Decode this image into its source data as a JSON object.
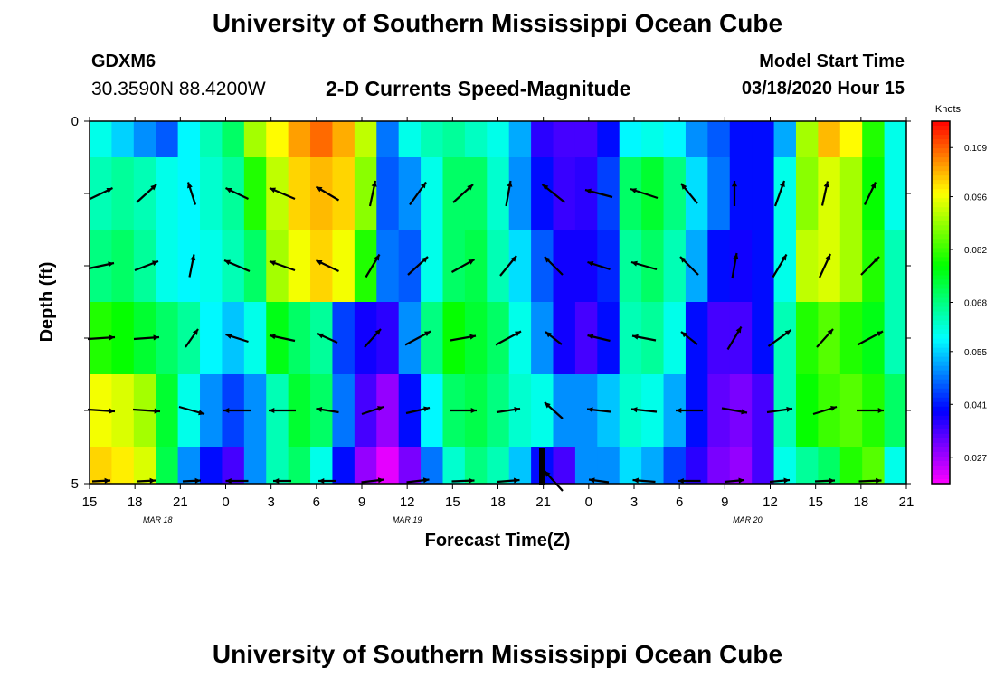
{
  "title": "University of Southern Mississippi Ocean Cube",
  "footer_title": "University of Southern Mississippi Ocean Cube",
  "station": {
    "id": "GDXM6",
    "coords": "30.3590N 88.4200W"
  },
  "subtitle": "2-D Currents Speed-Magnitude",
  "model": {
    "label": "Model Start Time",
    "value": "03/18/2020 Hour 15"
  },
  "chart_data": {
    "type": "heatmap",
    "title": "2-D Currents Speed-Magnitude",
    "xlabel": "Forecast Time(Z)",
    "ylabel": "Depth (ft)",
    "x_ticks": [
      "15",
      "18",
      "21",
      "0",
      "3",
      "6",
      "9",
      "12",
      "15",
      "18",
      "21",
      "0",
      "3",
      "6",
      "9",
      "12",
      "15",
      "18",
      "21"
    ],
    "date_labels": [
      {
        "text": "MAR 18",
        "tick_index": 1.5
      },
      {
        "text": "MAR 19",
        "tick_index": 7
      },
      {
        "text": "MAR 20",
        "tick_index": 14.5
      }
    ],
    "y_ticks": [
      "0",
      "5"
    ],
    "ylim": [
      0,
      5
    ],
    "colorbar": {
      "unit": "Knots",
      "min": 0.02,
      "max": 0.116,
      "ticks": [
        "0.109",
        "0.096",
        "0.082",
        "0.068",
        "0.055",
        "0.041",
        "0.027"
      ],
      "tick_values": [
        0.109,
        0.096,
        0.082,
        0.068,
        0.055,
        0.041,
        0.027
      ]
    },
    "n_cols": 37,
    "speed_rows": [
      [
        0.06,
        0.055,
        0.05,
        0.046,
        0.058,
        0.064,
        0.07,
        0.09,
        0.097,
        0.104,
        0.108,
        0.103,
        0.092,
        0.048,
        0.06,
        0.064,
        0.066,
        0.063,
        0.06,
        0.052,
        0.036,
        0.034,
        0.034,
        0.04,
        0.058,
        0.06,
        0.058,
        0.05,
        0.046,
        0.04,
        0.04,
        0.052,
        0.09,
        0.102,
        0.097,
        0.08,
        0.06
      ],
      [
        0.064,
        0.066,
        0.064,
        0.06,
        0.058,
        0.062,
        0.066,
        0.08,
        0.092,
        0.1,
        0.102,
        0.1,
        0.088,
        0.046,
        0.05,
        0.06,
        0.07,
        0.07,
        0.062,
        0.05,
        0.04,
        0.035,
        0.036,
        0.044,
        0.07,
        0.074,
        0.068,
        0.056,
        0.048,
        0.04,
        0.04,
        0.06,
        0.088,
        0.094,
        0.09,
        0.078,
        0.06
      ],
      [
        0.068,
        0.07,
        0.066,
        0.06,
        0.058,
        0.06,
        0.064,
        0.07,
        0.09,
        0.096,
        0.1,
        0.096,
        0.08,
        0.048,
        0.046,
        0.06,
        0.07,
        0.072,
        0.064,
        0.056,
        0.046,
        0.038,
        0.038,
        0.042,
        0.066,
        0.07,
        0.064,
        0.052,
        0.04,
        0.038,
        0.04,
        0.06,
        0.092,
        0.094,
        0.09,
        0.08,
        0.064
      ],
      [
        0.08,
        0.078,
        0.074,
        0.07,
        0.066,
        0.058,
        0.054,
        0.06,
        0.076,
        0.07,
        0.066,
        0.044,
        0.038,
        0.036,
        0.05,
        0.068,
        0.078,
        0.074,
        0.07,
        0.06,
        0.05,
        0.038,
        0.034,
        0.04,
        0.064,
        0.066,
        0.06,
        0.04,
        0.034,
        0.034,
        0.04,
        0.064,
        0.08,
        0.084,
        0.08,
        0.076,
        0.064
      ],
      [
        0.096,
        0.094,
        0.09,
        0.074,
        0.06,
        0.05,
        0.044,
        0.05,
        0.064,
        0.074,
        0.07,
        0.048,
        0.034,
        0.028,
        0.04,
        0.058,
        0.07,
        0.072,
        0.068,
        0.062,
        0.06,
        0.05,
        0.05,
        0.054,
        0.062,
        0.06,
        0.052,
        0.04,
        0.032,
        0.03,
        0.034,
        0.064,
        0.078,
        0.082,
        0.084,
        0.08,
        0.07
      ],
      [
        0.1,
        0.098,
        0.094,
        0.072,
        0.05,
        0.04,
        0.034,
        0.05,
        0.064,
        0.07,
        0.06,
        0.04,
        0.028,
        0.022,
        0.03,
        0.048,
        0.062,
        0.068,
        0.064,
        0.054,
        0.04,
        0.034,
        0.05,
        0.05,
        0.056,
        0.052,
        0.044,
        0.036,
        0.03,
        0.028,
        0.034,
        0.06,
        0.066,
        0.07,
        0.08,
        0.084,
        0.06
      ]
    ],
    "vector_rows": [
      {
        "depth_row": 1,
        "dx": [
          25,
          22,
          -8,
          -25,
          -28,
          -25,
          6,
          18,
          22,
          5,
          -25,
          -30,
          -30,
          -18,
          0,
          10,
          6,
          12
        ],
        "dy": [
          -12,
          -20,
          -25,
          -12,
          -12,
          -15,
          -28,
          -25,
          -20,
          -28,
          -20,
          -8,
          -10,
          -22,
          -28,
          -28,
          -27,
          -25
        ]
      },
      {
        "depth_row": 2,
        "dx": [
          28,
          26,
          5,
          -28,
          -28,
          -25,
          15,
          22,
          25,
          18,
          -20,
          -25,
          -28,
          -20,
          5,
          15,
          12,
          20
        ],
        "dy": [
          -6,
          -10,
          -25,
          -12,
          -10,
          -12,
          -25,
          -20,
          -14,
          -22,
          -20,
          -8,
          -8,
          -20,
          -28,
          -25,
          -26,
          -20
        ]
      },
      {
        "depth_row": 3,
        "dx": [
          30,
          28,
          14,
          -25,
          -28,
          -22,
          18,
          28,
          28,
          28,
          -18,
          -25,
          -26,
          -18,
          15,
          25,
          18,
          28
        ],
        "dy": [
          -2,
          -2,
          -20,
          -8,
          -6,
          -10,
          -20,
          -15,
          -5,
          -15,
          -14,
          -6,
          -5,
          -14,
          -25,
          -18,
          -20,
          -15
        ]
      },
      {
        "depth_row": 4,
        "dx": [
          30,
          30,
          28,
          -30,
          -30,
          -25,
          24,
          26,
          30,
          26,
          -20,
          -26,
          -28,
          -30,
          28,
          28,
          26,
          30
        ],
        "dy": [
          2,
          2,
          8,
          0,
          0,
          -4,
          -8,
          -6,
          0,
          -4,
          -18,
          -3,
          -3,
          0,
          5,
          -4,
          -8,
          0
        ]
      },
      {
        "depth_row": 5,
        "dx": [
          20,
          20,
          20,
          -25,
          -20,
          -20,
          25,
          25,
          25,
          25,
          -20,
          -22,
          -25,
          -25,
          22,
          22,
          22,
          25
        ],
        "dy": [
          -1,
          -1,
          -1,
          0,
          0,
          0,
          -3,
          -3,
          -1,
          -2,
          -22,
          -3,
          -2,
          0,
          -2,
          -2,
          -1,
          -1
        ]
      }
    ]
  }
}
